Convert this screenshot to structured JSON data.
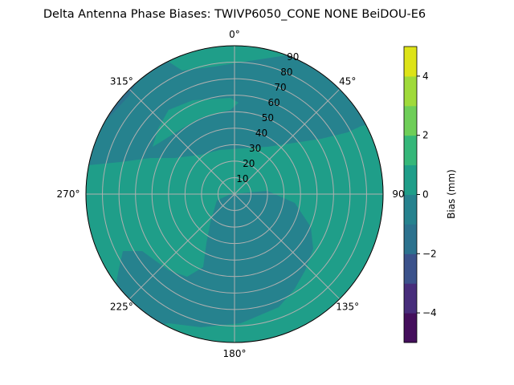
{
  "chart_data": {
    "type": "heatmap",
    "subtype": "polar-contour",
    "title": "Delta Antenna Phase Biases: TWIVP6050_CONE  NONE BeiDOU-E6",
    "angular_ticks": [
      "0°",
      "45°",
      "90°",
      "135°",
      "180°",
      "225°",
      "270°",
      "315°"
    ],
    "radial_ticks": [
      "10",
      "20",
      "30",
      "40",
      "50",
      "60",
      "70",
      "80",
      "90"
    ],
    "radial_range": [
      0,
      90
    ],
    "grid": true,
    "colorbar": {
      "label": "Bias (mm)",
      "levels": [
        -5,
        -4,
        -3,
        -2,
        -1,
        0,
        1,
        2,
        3,
        4,
        5
      ],
      "tick_labels": [
        "−4",
        "−2",
        "0",
        "2",
        "4"
      ],
      "tick_values": [
        -4,
        -2,
        0,
        2,
        4
      ],
      "colors": [
        "#440f5c",
        "#472d7b",
        "#3b528b",
        "#2c728e",
        "#26828e",
        "#1f9e89",
        "#35b779",
        "#6ece58",
        "#9fda3a",
        "#dde318"
      ]
    },
    "dominant_levels": {
      "between_0_and_1": "#1f9e89",
      "between_-1_and_0": "#26828e",
      "between_-2_and_-1": "#2c728e"
    }
  }
}
